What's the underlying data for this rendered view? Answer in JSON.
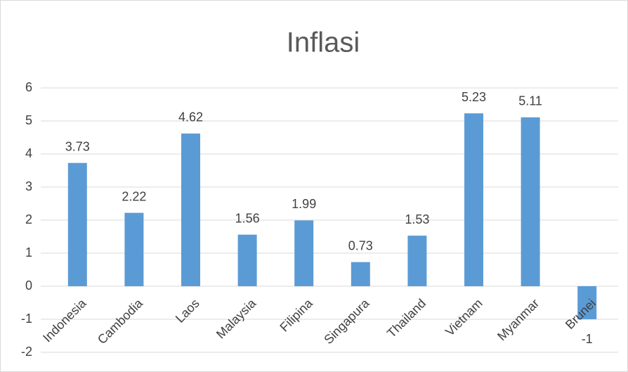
{
  "chart_data": {
    "type": "bar",
    "title": "Inflasi",
    "categories": [
      "Indonesia",
      "Cambodia",
      "Laos",
      "Malaysia",
      "Filipina",
      "Singapura",
      "Thailand",
      "Vietnam",
      "Myanmar",
      "Brunei"
    ],
    "values": [
      3.73,
      2.22,
      4.62,
      1.56,
      1.99,
      0.73,
      1.53,
      5.23,
      5.11,
      -1
    ],
    "color": "#5b9bd5",
    "ylim": [
      -2,
      6
    ],
    "yticks": [
      -2,
      -1,
      0,
      1,
      2,
      3,
      4,
      5,
      6
    ],
    "grid": true
  }
}
